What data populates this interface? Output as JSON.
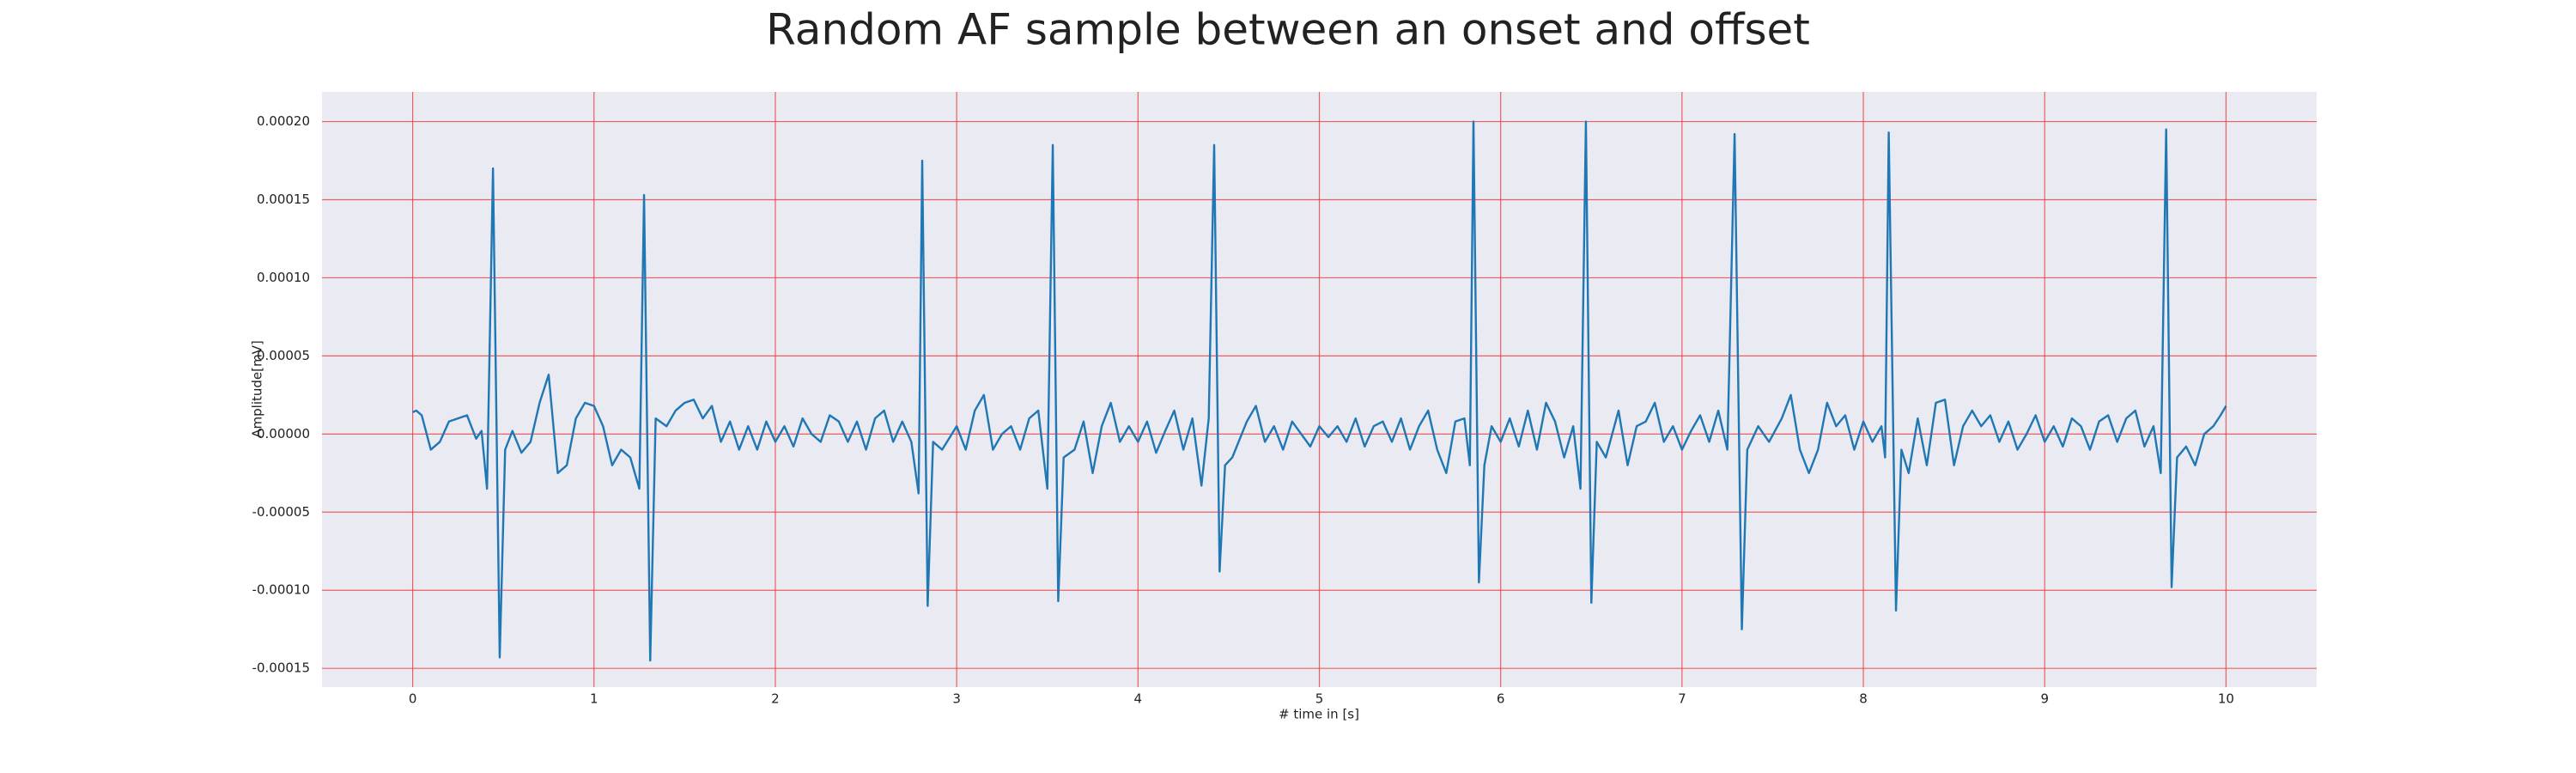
{
  "chart_data": {
    "type": "line",
    "title": "Random AF sample between an onset and offset",
    "xlabel": "# time in [s]",
    "ylabel": "Amplitude[mV]",
    "xlim": [
      -0.5,
      10.5
    ],
    "ylim": [
      -0.000162,
      0.000219
    ],
    "xticks": [
      0,
      1,
      2,
      3,
      4,
      5,
      6,
      7,
      8,
      9,
      10
    ],
    "yticks": [
      {
        "value": -0.00015,
        "label": "-0.00015"
      },
      {
        "value": -0.0001,
        "label": "-0.00010"
      },
      {
        "value": -5e-05,
        "label": "-0.00005"
      },
      {
        "value": 0,
        "label": "0.00000"
      },
      {
        "value": 5e-05,
        "label": "0.00005"
      },
      {
        "value": 0.0001,
        "label": "0.00010"
      },
      {
        "value": 0.00015,
        "label": "0.00015"
      },
      {
        "value": 0.0002,
        "label": "0.00020"
      }
    ],
    "grid": true,
    "grid_color": "#f03c3c",
    "background": "#eaeaf2",
    "x": [
      0,
      0.02,
      0.05,
      0.1,
      0.15,
      0.2,
      0.25,
      0.3,
      0.35,
      0.38,
      0.41,
      0.443,
      0.48,
      0.51,
      0.55,
      0.6,
      0.65,
      0.7,
      0.75,
      0.8,
      0.85,
      0.9,
      0.95,
      1.0,
      1.05,
      1.1,
      1.15,
      1.2,
      1.25,
      1.276,
      1.31,
      1.34,
      1.4,
      1.45,
      1.5,
      1.55,
      1.6,
      1.65,
      1.7,
      1.75,
      1.8,
      1.85,
      1.9,
      1.95,
      2.0,
      2.05,
      2.1,
      2.15,
      2.2,
      2.25,
      2.3,
      2.35,
      2.4,
      2.45,
      2.5,
      2.55,
      2.6,
      2.65,
      2.7,
      2.75,
      2.79,
      2.81,
      2.84,
      2.87,
      2.92,
      3.0,
      3.05,
      3.1,
      3.15,
      3.2,
      3.25,
      3.3,
      3.35,
      3.4,
      3.45,
      3.5,
      3.53,
      3.56,
      3.59,
      3.65,
      3.7,
      3.75,
      3.8,
      3.85,
      3.9,
      3.95,
      4.0,
      4.05,
      4.1,
      4.15,
      4.2,
      4.25,
      4.3,
      4.35,
      4.39,
      4.42,
      4.45,
      4.48,
      4.52,
      4.6,
      4.65,
      4.7,
      4.75,
      4.8,
      4.85,
      4.9,
      4.95,
      5.0,
      5.05,
      5.1,
      5.15,
      5.2,
      5.25,
      5.3,
      5.35,
      5.4,
      5.45,
      5.5,
      5.55,
      5.6,
      5.65,
      5.7,
      5.75,
      5.8,
      5.83,
      5.85,
      5.88,
      5.91,
      5.95,
      6.0,
      6.05,
      6.1,
      6.15,
      6.2,
      6.25,
      6.3,
      6.35,
      6.4,
      6.44,
      6.47,
      6.5,
      6.53,
      6.58,
      6.65,
      6.7,
      6.75,
      6.8,
      6.85,
      6.9,
      6.95,
      7.0,
      7.05,
      7.1,
      7.15,
      7.2,
      7.25,
      7.29,
      7.33,
      7.36,
      7.42,
      7.48,
      7.55,
      7.6,
      7.65,
      7.7,
      7.75,
      7.8,
      7.85,
      7.9,
      7.95,
      8.0,
      8.05,
      8.1,
      8.12,
      8.14,
      8.18,
      8.21,
      8.25,
      8.3,
      8.35,
      8.4,
      8.45,
      8.5,
      8.55,
      8.6,
      8.65,
      8.7,
      8.75,
      8.8,
      8.85,
      8.9,
      8.95,
      9.0,
      9.05,
      9.1,
      9.15,
      9.2,
      9.25,
      9.3,
      9.35,
      9.4,
      9.45,
      9.5,
      9.55,
      9.6,
      9.64,
      9.67,
      9.7,
      9.73,
      9.78,
      9.83,
      9.88,
      9.93,
      9.97,
      10.0
    ],
    "series": [
      {
        "color": "#1f77b4",
        "values": [
          1.4e-05,
          1.5e-05,
          1.2e-05,
          -1e-05,
          -5e-06,
          8e-06,
          1e-05,
          1.2e-05,
          -3e-06,
          2e-06,
          -3.5e-05,
          0.00017,
          -0.000143,
          -1e-05,
          2e-06,
          -1.2e-05,
          -5e-06,
          2e-05,
          3.8e-05,
          -2.5e-05,
          -2e-05,
          1e-05,
          2e-05,
          1.8e-05,
          5e-06,
          -2e-05,
          -1e-05,
          -1.5e-05,
          -3.5e-05,
          0.000153,
          -0.000145,
          1e-05,
          5e-06,
          1.5e-05,
          2e-05,
          2.2e-05,
          1e-05,
          1.8e-05,
          -5e-06,
          8e-06,
          -1e-05,
          5e-06,
          -1e-05,
          8e-06,
          -5e-06,
          5e-06,
          -8e-06,
          1e-05,
          0,
          -5e-06,
          1.2e-05,
          8e-06,
          -5e-06,
          8e-06,
          -1e-05,
          1e-05,
          1.5e-05,
          -5e-06,
          8e-06,
          -5e-06,
          -3.8e-05,
          0.000175,
          -0.00011,
          -5e-06,
          -1e-05,
          5e-06,
          -1e-05,
          1.5e-05,
          2.5e-05,
          -1e-05,
          0,
          5e-06,
          -1e-05,
          1e-05,
          1.5e-05,
          -3.5e-05,
          0.000185,
          -0.000107,
          -1.5e-05,
          -1e-05,
          8e-06,
          -2.5e-05,
          5e-06,
          2e-05,
          -5e-06,
          5e-06,
          -5e-06,
          8e-06,
          -1.2e-05,
          2e-06,
          1.5e-05,
          -1e-05,
          1e-05,
          -3.3e-05,
          1e-05,
          0.000185,
          -8.8e-05,
          -2e-05,
          -1.5e-05,
          8e-06,
          1.8e-05,
          -5e-06,
          5e-06,
          -1e-05,
          8e-06,
          0,
          -8e-06,
          5e-06,
          -2e-06,
          5e-06,
          -5e-06,
          1e-05,
          -8e-06,
          5e-06,
          8e-06,
          -5e-06,
          1e-05,
          -1e-05,
          5e-06,
          1.5e-05,
          -1e-05,
          -2.5e-05,
          8e-06,
          1e-05,
          -2e-05,
          0.0002,
          -9.5e-05,
          -2e-05,
          5e-06,
          -5e-06,
          1e-05,
          -8e-06,
          1.5e-05,
          -1e-05,
          2e-05,
          8e-06,
          -1.5e-05,
          5e-06,
          -3.5e-05,
          0.0002,
          -0.000108,
          -5e-06,
          -1.5e-05,
          1.5e-05,
          -2e-05,
          5e-06,
          8e-06,
          2e-05,
          -5e-06,
          5e-06,
          -1e-05,
          2e-06,
          1.2e-05,
          -5e-06,
          1.5e-05,
          -1e-05,
          0.000192,
          -0.000125,
          -1e-05,
          5e-06,
          -5e-06,
          1e-05,
          2.5e-05,
          -1e-05,
          -2.5e-05,
          -1e-05,
          2e-05,
          5e-06,
          1.2e-05,
          -1e-05,
          8e-06,
          -5e-06,
          5e-06,
          -1.5e-05,
          0.000193,
          -0.000113,
          -1e-05,
          -2.5e-05,
          1e-05,
          -2e-05,
          2e-05,
          2.2e-05,
          -2e-05,
          5e-06,
          1.5e-05,
          5e-06,
          1.2e-05,
          -5e-06,
          8e-06,
          -1e-05,
          0,
          1.2e-05,
          -5e-06,
          5e-06,
          -8e-06,
          1e-05,
          5e-06,
          -1e-05,
          8e-06,
          1.2e-05,
          -5e-06,
          1e-05,
          1.5e-05,
          -8e-06,
          5e-06,
          -2.5e-05,
          0.000195,
          -9.8e-05,
          -1.5e-05,
          -8e-06,
          -2e-05,
          0,
          5e-06,
          1.2e-05,
          1.8e-05
        ]
      }
    ]
  }
}
